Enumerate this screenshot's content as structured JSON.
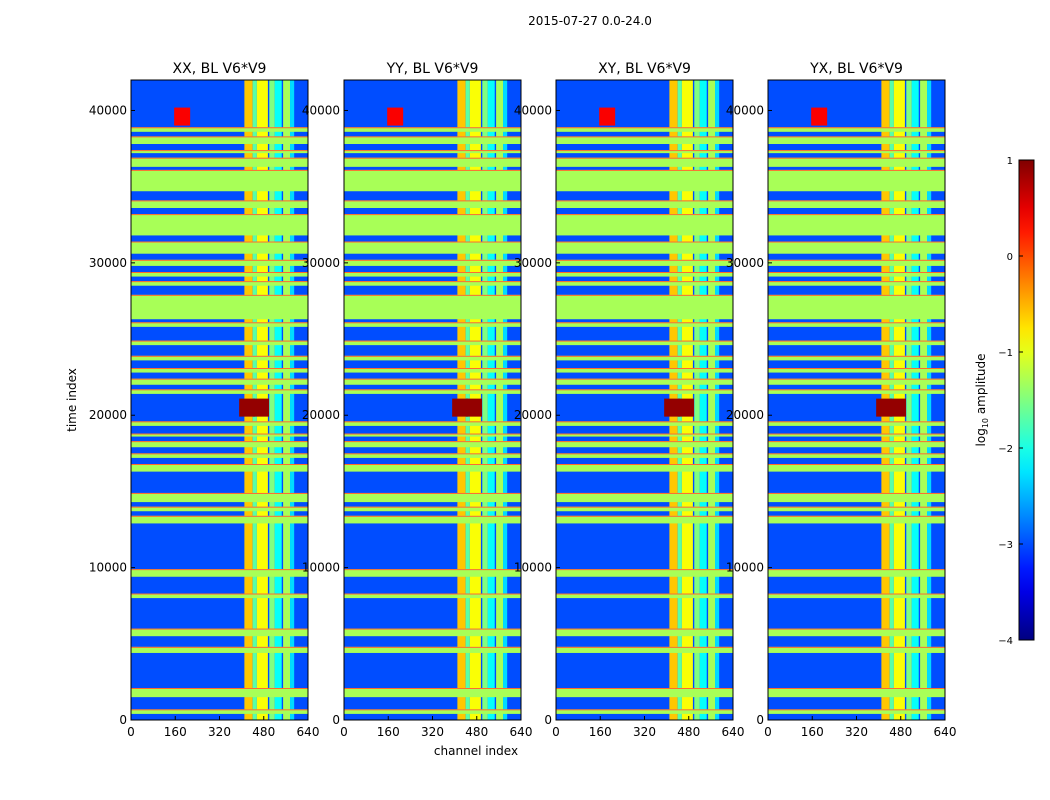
{
  "figure_title": "2015-07-27 0.0-24.0",
  "xlabel": "channel index",
  "ylabel": "time index",
  "colorbar": {
    "label_prefix": "log",
    "label_sub": "10",
    "label_suffix": " amplitude",
    "min": -4,
    "max": 1,
    "ticks": [
      1,
      0,
      -1,
      -2,
      -3,
      -4
    ],
    "tick_labels": [
      "1",
      "0",
      "−1",
      "−2",
      "−3",
      "−4"
    ],
    "colormap": "jet"
  },
  "chart_data": {
    "type": "heatmap",
    "panels": [
      {
        "title": "XX, BL V6*V9"
      },
      {
        "title": "YY, BL V6*V9"
      },
      {
        "title": "XY, BL V6*V9"
      },
      {
        "title": "YX, BL V6*V9"
      }
    ],
    "x_range": [
      0,
      640
    ],
    "y_range": [
      0,
      42000
    ],
    "x_ticks": [
      0,
      160,
      320,
      480,
      640
    ],
    "y_ticks": [
      0,
      10000,
      20000,
      30000,
      40000
    ],
    "x_tick_labels": [
      "0",
      "160",
      "320",
      "480",
      "640"
    ],
    "y_tick_labels": [
      "0",
      "10000",
      "20000",
      "30000",
      "40000"
    ],
    "background_log_amplitude": -3,
    "flagged_rows_value": -1.3,
    "flagged_row_bands": [
      [
        400,
        700
      ],
      [
        1500,
        2100
      ],
      [
        4400,
        4800
      ],
      [
        5500,
        6000
      ],
      [
        8000,
        8300
      ],
      [
        9400,
        9900
      ],
      [
        12900,
        13400
      ],
      [
        13700,
        14000
      ],
      [
        14300,
        14900
      ],
      [
        16300,
        16800
      ],
      [
        17200,
        17500
      ],
      [
        17900,
        18300
      ],
      [
        18600,
        18800
      ],
      [
        19300,
        19600
      ],
      [
        21400,
        21700
      ],
      [
        22000,
        22400
      ],
      [
        22800,
        23100
      ],
      [
        23600,
        23900
      ],
      [
        24600,
        24900
      ],
      [
        25800,
        26100
      ],
      [
        26300,
        27900
      ],
      [
        28500,
        28800
      ],
      [
        29100,
        29400
      ],
      [
        29800,
        30200
      ],
      [
        30600,
        31400
      ],
      [
        31800,
        33200
      ],
      [
        33600,
        34100
      ],
      [
        34700,
        36100
      ],
      [
        36300,
        36900
      ],
      [
        37200,
        37400
      ],
      [
        37800,
        38300
      ],
      [
        38600,
        38900
      ]
    ],
    "rfi_channel_bands": [
      {
        "range": [
          410,
          440
        ],
        "value": -0.6
      },
      {
        "range": [
          440,
          455
        ],
        "value": -1.7
      },
      {
        "range": [
          455,
          495
        ],
        "value": -0.9
      },
      {
        "range": [
          500,
          520
        ],
        "value": -1.5
      },
      {
        "range": [
          520,
          545
        ],
        "value": -2.1
      },
      {
        "range": [
          550,
          575
        ],
        "value": -1.3
      },
      {
        "range": [
          575,
          590
        ],
        "value": -2.3
      }
    ],
    "hotspots": [
      {
        "channel": 420,
        "time": 20500,
        "value": 0.9
      },
      {
        "channel": 470,
        "time": 20500,
        "value": 0.9
      },
      {
        "channel": 185,
        "time": 39600,
        "value": 0.4
      }
    ]
  }
}
